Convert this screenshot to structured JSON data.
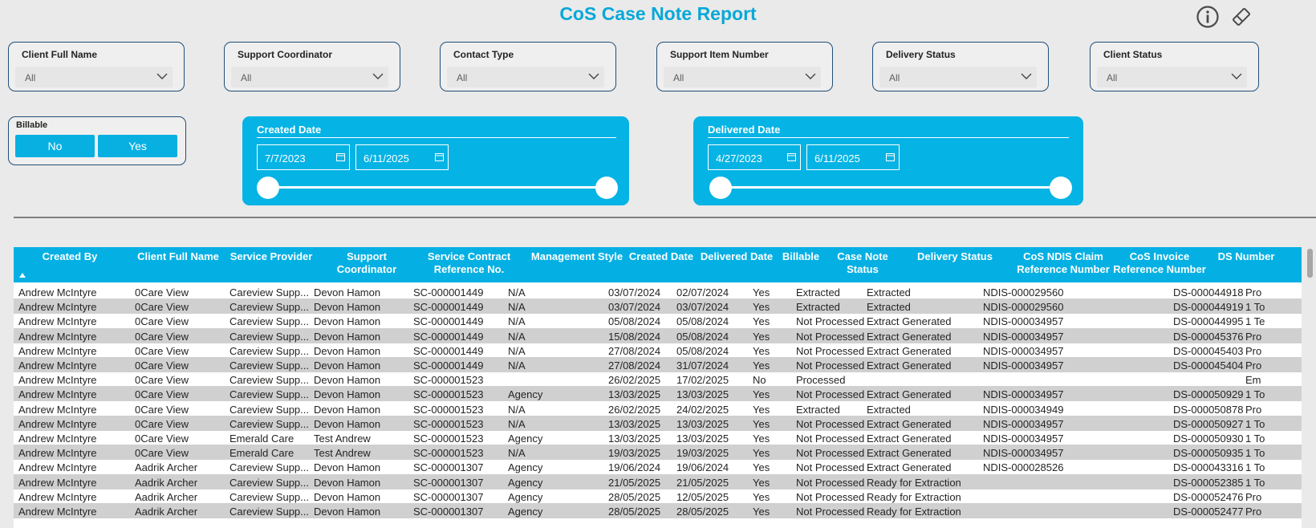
{
  "report": {
    "title": "CoS Case Note Report"
  },
  "filters": [
    {
      "label": "Client Full Name",
      "value": "All"
    },
    {
      "label": "Support Coordinator",
      "value": "All"
    },
    {
      "label": "Contact Type",
      "value": "All"
    },
    {
      "label": "Support Item Number",
      "value": "All"
    },
    {
      "label": "Delivery Status",
      "value": "All"
    },
    {
      "label": "Client Status",
      "value": "All"
    }
  ],
  "billable": {
    "label": "Billable",
    "options": [
      "No",
      "Yes"
    ]
  },
  "created_date": {
    "label": "Created Date",
    "start": "7/7/2023",
    "end": "6/11/2025"
  },
  "delivered_date": {
    "label": "Delivered Date",
    "start": "4/27/2023",
    "end": "6/11/2025"
  },
  "table": {
    "columns": [
      "Created By",
      "Client Full Name",
      "Service Provider",
      "Support Coordinator",
      "Service Contract Reference No.",
      "Management Style",
      "Created Date",
      "Delivered Date",
      "Billable",
      "Case Note Status",
      "Delivery Status",
      "CoS NDIS Claim Reference Number",
      "CoS Invoice Reference Number",
      "DS Number",
      ""
    ],
    "rows": [
      [
        "Andrew McIntyre",
        "0Care View",
        "Careview Supp...",
        "Devon Hamon",
        "SC-000001449",
        "N/A",
        "03/07/2024",
        "02/07/2024",
        "Yes",
        "Extracted",
        "Extracted",
        "NDIS-000029560",
        "",
        "DS-000044918",
        "Pro"
      ],
      [
        "Andrew McIntyre",
        "0Care View",
        "Careview Supp...",
        "Devon Hamon",
        "SC-000001449",
        "N/A",
        "03/07/2024",
        "03/07/2024",
        "Yes",
        "Extracted",
        "Extracted",
        "NDIS-000029560",
        "",
        "DS-000044919",
        "1 To"
      ],
      [
        "Andrew McIntyre",
        "0Care View",
        "Careview Supp...",
        "Devon Hamon",
        "SC-000001449",
        "N/A",
        "05/08/2024",
        "05/08/2024",
        "Yes",
        "Not Processed",
        "Extract Generated",
        "NDIS-000034957",
        "",
        "DS-000044995",
        "1 Te"
      ],
      [
        "Andrew McIntyre",
        "0Care View",
        "Careview Supp...",
        "Devon Hamon",
        "SC-000001449",
        "N/A",
        "15/08/2024",
        "05/08/2024",
        "Yes",
        "Not Processed",
        "Extract Generated",
        "NDIS-000034957",
        "",
        "DS-000045376",
        "Pro"
      ],
      [
        "Andrew McIntyre",
        "0Care View",
        "Careview Supp...",
        "Devon Hamon",
        "SC-000001449",
        "N/A",
        "27/08/2024",
        "05/08/2024",
        "Yes",
        "Not Processed",
        "Extract Generated",
        "NDIS-000034957",
        "",
        "DS-000045403",
        "Pro"
      ],
      [
        "Andrew McIntyre",
        "0Care View",
        "Careview Supp...",
        "Devon Hamon",
        "SC-000001449",
        "N/A",
        "27/08/2024",
        "31/07/2024",
        "Yes",
        "Not Processed",
        "Extract Generated",
        "NDIS-000034957",
        "",
        "DS-000045404",
        "Pro"
      ],
      [
        "Andrew McIntyre",
        "0Care View",
        "Careview Supp...",
        "Devon Hamon",
        "SC-000001523",
        "",
        "26/02/2025",
        "17/02/2025",
        "No",
        "Processed",
        "",
        "",
        "",
        "",
        "Em"
      ],
      [
        "Andrew McIntyre",
        "0Care View",
        "Careview Supp...",
        "Devon Hamon",
        "SC-000001523",
        "Agency",
        "13/03/2025",
        "13/03/2025",
        "Yes",
        "Not Processed",
        "Extract Generated",
        "NDIS-000034957",
        "",
        "DS-000050929",
        "1 To"
      ],
      [
        "Andrew McIntyre",
        "0Care View",
        "Careview Supp...",
        "Devon Hamon",
        "SC-000001523",
        "N/A",
        "26/02/2025",
        "24/02/2025",
        "Yes",
        "Extracted",
        "Extracted",
        "NDIS-000034949",
        "",
        "DS-000050878",
        "Pro"
      ],
      [
        "Andrew McIntyre",
        "0Care View",
        "Careview Supp...",
        "Devon Hamon",
        "SC-000001523",
        "N/A",
        "13/03/2025",
        "13/03/2025",
        "Yes",
        "Not Processed",
        "Extract Generated",
        "NDIS-000034957",
        "",
        "DS-000050927",
        "1 To"
      ],
      [
        "Andrew McIntyre",
        "0Care View",
        "Emerald Care",
        "Test Andrew",
        "SC-000001523",
        "Agency",
        "13/03/2025",
        "13/03/2025",
        "Yes",
        "Not Processed",
        "Extract Generated",
        "NDIS-000034957",
        "",
        "DS-000050930",
        "1 To"
      ],
      [
        "Andrew McIntyre",
        "0Care View",
        "Emerald Care",
        "Test Andrew",
        "SC-000001523",
        "N/A",
        "19/03/2025",
        "19/03/2025",
        "Yes",
        "Not Processed",
        "Extract Generated",
        "NDIS-000034957",
        "",
        "DS-000050935",
        "1 To"
      ],
      [
        "Andrew McIntyre",
        "Aadrik Archer",
        "Careview Supp...",
        "Devon Hamon",
        "SC-000001307",
        "Agency",
        "19/06/2024",
        "19/06/2024",
        "Yes",
        "Not Processed",
        "Extract Generated",
        "NDIS-000028526",
        "",
        "DS-000043316",
        "1 To"
      ],
      [
        "Andrew McIntyre",
        "Aadrik Archer",
        "Careview Supp...",
        "Devon Hamon",
        "SC-000001307",
        "Agency",
        "21/05/2025",
        "21/05/2025",
        "Yes",
        "Not Processed",
        "Ready for Extraction",
        "",
        "",
        "DS-000052385",
        "1 To"
      ],
      [
        "Andrew McIntyre",
        "Aadrik Archer",
        "Careview Supp...",
        "Devon Hamon",
        "SC-000001307",
        "Agency",
        "28/05/2025",
        "12/05/2025",
        "Yes",
        "Not Processed",
        "Ready for Extraction",
        "",
        "",
        "DS-000052476",
        "Pro"
      ],
      [
        "Andrew McIntyre",
        "Aadrik Archer",
        "Careview Supp...",
        "Devon Hamon",
        "SC-000001307",
        "Agency",
        "28/05/2025",
        "28/05/2025",
        "Yes",
        "Not Processed",
        "Ready for Extraction",
        "",
        "",
        "DS-000052477",
        "Pro"
      ]
    ]
  }
}
